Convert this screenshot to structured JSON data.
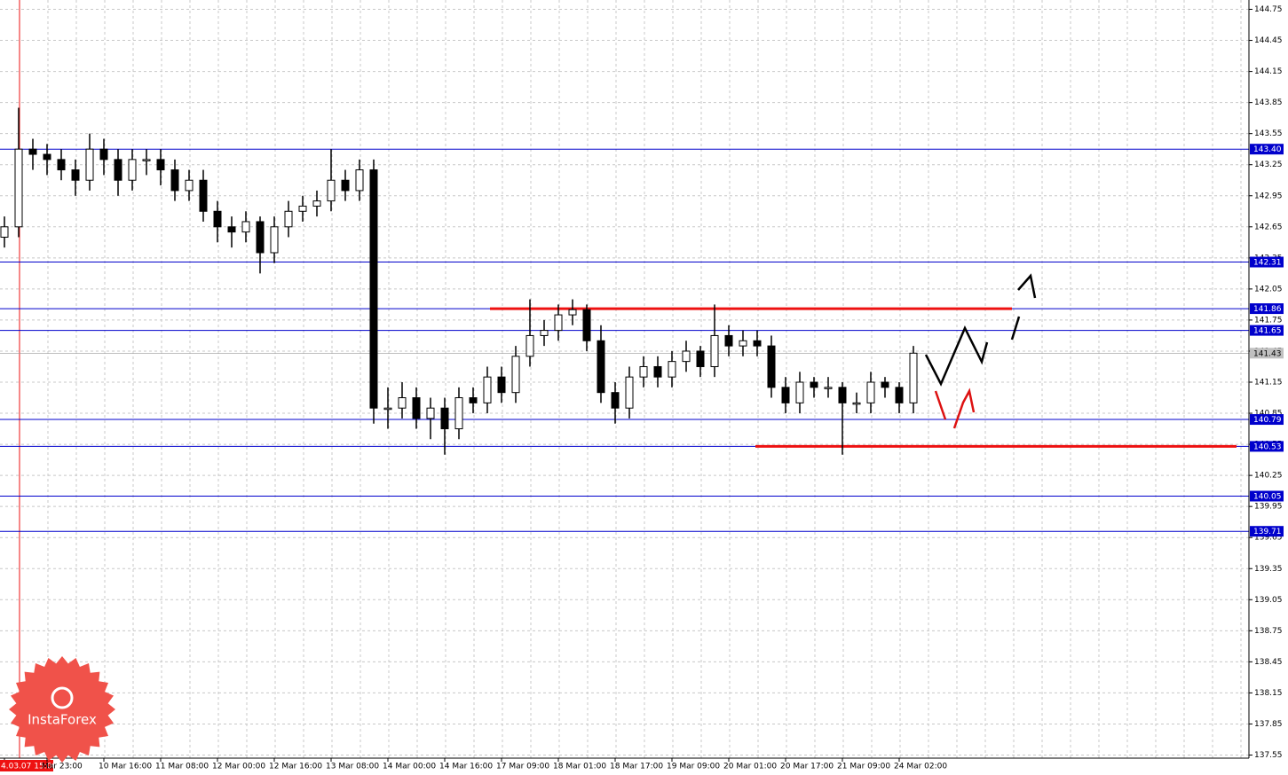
{
  "chart_data": {
    "type": "candlestick",
    "watermark": "InstaForex",
    "categories": [
      "4.03.07 15:00",
      null,
      null,
      "Mar 23:00",
      null,
      null,
      null,
      "10 Mar 16:00",
      null,
      null,
      null,
      "11 Mar 08:00",
      null,
      null,
      null,
      "12 Mar 00:00",
      null,
      null,
      null,
      "12 Mar 16:00",
      null,
      null,
      null,
      "13 Mar 08:00",
      null,
      null,
      null,
      "14 Mar 00:00",
      null,
      null,
      null,
      "14 Mar 16:00",
      null,
      null,
      null,
      "17 Mar 09:00",
      null,
      null,
      null,
      "18 Mar 01:00",
      null,
      null,
      null,
      "18 Mar 17:00",
      null,
      null,
      null,
      "19 Mar 09:00",
      null,
      null,
      null,
      "20 Mar 01:00",
      null,
      null,
      null,
      "20 Mar 17:00",
      null,
      null,
      null,
      "21 Mar 09:00",
      null,
      null,
      null,
      "24 Mar 02:00",
      null
    ],
    "open": [
      142.55,
      142.65,
      143.4,
      143.35,
      143.3,
      143.2,
      143.1,
      143.4,
      143.3,
      143.1,
      143.3,
      143.3,
      143.2,
      143.0,
      143.1,
      142.8,
      142.65,
      142.6,
      142.7,
      142.4,
      142.65,
      142.8,
      142.85,
      142.9,
      143.1,
      143.0,
      143.2,
      140.9,
      140.9,
      141.0,
      140.8,
      140.9,
      140.7,
      141.0,
      140.95,
      141.2,
      141.05,
      141.4,
      141.6,
      141.65,
      141.8,
      141.85,
      141.55,
      141.05,
      140.9,
      141.2,
      141.3,
      141.2,
      141.35,
      141.45,
      141.3,
      141.6,
      141.5,
      141.55,
      141.5,
      141.1,
      140.95,
      141.15,
      141.1,
      141.1,
      140.95,
      140.95,
      141.15,
      141.1,
      140.95
    ],
    "high": [
      142.75,
      143.8,
      143.5,
      143.45,
      143.4,
      143.3,
      143.55,
      143.5,
      143.4,
      143.4,
      143.4,
      143.4,
      143.3,
      143.2,
      143.2,
      142.9,
      142.75,
      142.8,
      142.75,
      142.75,
      142.9,
      142.95,
      143.0,
      143.4,
      143.2,
      143.3,
      143.3,
      141.1,
      141.15,
      141.1,
      141.0,
      141.0,
      141.1,
      141.1,
      141.3,
      141.3,
      141.5,
      141.95,
      141.75,
      141.9,
      141.95,
      141.9,
      141.7,
      141.15,
      141.3,
      141.4,
      141.4,
      141.45,
      141.55,
      141.5,
      141.9,
      141.7,
      141.65,
      141.65,
      141.6,
      141.2,
      141.25,
      141.2,
      141.2,
      141.15,
      141.05,
      141.25,
      141.2,
      141.15,
      141.5
    ],
    "low": [
      142.45,
      142.55,
      143.2,
      143.15,
      143.1,
      142.95,
      143.0,
      143.15,
      142.95,
      143.0,
      143.15,
      143.05,
      142.9,
      142.9,
      142.7,
      142.5,
      142.45,
      142.5,
      142.2,
      142.3,
      142.55,
      142.7,
      142.75,
      142.8,
      142.9,
      142.9,
      140.75,
      140.7,
      140.8,
      140.7,
      140.6,
      140.45,
      140.6,
      140.85,
      140.85,
      140.95,
      140.95,
      141.3,
      141.5,
      141.55,
      141.7,
      141.45,
      140.95,
      140.75,
      140.8,
      141.1,
      141.1,
      141.1,
      141.25,
      141.2,
      141.2,
      141.4,
      141.4,
      141.4,
      141.0,
      140.85,
      140.85,
      141.0,
      141.0,
      140.45,
      140.85,
      140.85,
      141.0,
      140.85,
      140.85
    ],
    "close": [
      142.65,
      143.4,
      143.35,
      143.3,
      143.2,
      143.1,
      143.4,
      143.3,
      143.1,
      143.3,
      143.3,
      143.2,
      143.0,
      143.1,
      142.8,
      142.65,
      142.6,
      142.7,
      142.4,
      142.65,
      142.8,
      142.85,
      142.9,
      143.1,
      143.0,
      143.2,
      140.9,
      140.9,
      141.0,
      140.8,
      140.9,
      140.7,
      141.0,
      140.95,
      141.2,
      141.05,
      141.4,
      141.6,
      141.65,
      141.8,
      141.85,
      141.55,
      141.05,
      140.9,
      141.2,
      141.3,
      141.2,
      141.35,
      141.45,
      141.3,
      141.6,
      141.5,
      141.55,
      141.5,
      141.1,
      140.95,
      141.15,
      141.1,
      141.1,
      140.95,
      140.95,
      141.15,
      141.1,
      140.95,
      141.43
    ],
    "ylim": [
      137.52,
      144.84
    ],
    "yticks": [
      144.75,
      144.45,
      144.15,
      143.85,
      143.55,
      143.25,
      142.95,
      142.65,
      142.35,
      142.05,
      141.75,
      141.45,
      141.15,
      140.85,
      140.55,
      140.25,
      139.95,
      139.65,
      139.35,
      139.05,
      138.75,
      138.45,
      138.15,
      137.85,
      137.55
    ],
    "grid": true,
    "color": "#000000",
    "levels": [
      {
        "value": 143.4,
        "label": "143.40"
      },
      142.31,
      141.86,
      141.65,
      140.79,
      140.53,
      140.05,
      139.71
    ],
    "level_color": "#0000cc",
    "red_lines": [
      141.86,
      140.53
    ],
    "red_line_color": "#ee1111",
    "current_price": 141.43
  }
}
